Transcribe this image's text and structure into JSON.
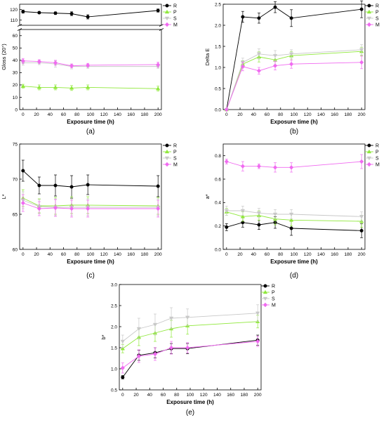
{
  "series_styles": [
    {
      "name": "R",
      "color": "#000000"
    },
    {
      "name": "P",
      "color": "#8fe83a"
    },
    {
      "name": "S",
      "color": "#c8c8c8"
    },
    {
      "name": "M",
      "color": "#f06af0"
    }
  ],
  "chart_data": [
    {
      "panel": "(a)",
      "type": "line",
      "xlabel": "Exposure time (h)",
      "ylabel": "Gloss (20°)",
      "xlim": [
        -5,
        205
      ],
      "xticks": [
        0,
        20,
        40,
        60,
        80,
        100,
        120,
        140,
        160,
        180,
        200
      ],
      "broken_axis": true,
      "upper_ylim": [
        105,
        125
      ],
      "upper_yticks": [
        110,
        120
      ],
      "lower_ylim": [
        0,
        65
      ],
      "lower_yticks": [
        0,
        10,
        20,
        30,
        40,
        50,
        60
      ],
      "ytick_labels": [
        "0",
        "10",
        "20",
        "30",
        "40",
        "50",
        "60",
        "110",
        "120"
      ],
      "x": [
        0,
        24,
        48,
        72,
        96,
        200
      ],
      "series": [
        {
          "name": "R",
          "values": [
            118,
            117,
            116.5,
            116,
            113,
            119
          ],
          "errors": [
            1.5,
            1,
            1.2,
            1.8,
            2,
            1.5
          ]
        },
        {
          "name": "P",
          "values": [
            19,
            18,
            18,
            17.5,
            18,
            17
          ],
          "errors": [
            1.5,
            2,
            2,
            2,
            2,
            2
          ]
        },
        {
          "name": "S",
          "values": [
            38,
            38,
            37,
            35,
            35,
            35
          ],
          "errors": [
            2,
            1.5,
            2.5,
            2,
            1.5,
            1.5
          ]
        },
        {
          "name": "M",
          "values": [
            39.5,
            39,
            38,
            35.5,
            36,
            36.5
          ],
          "errors": [
            2,
            1.5,
            2,
            1.5,
            1.5,
            2
          ]
        }
      ]
    },
    {
      "panel": "(b)",
      "type": "line",
      "xlabel": "Exposure time (h)",
      "ylabel": "Delta E",
      "xlim": [
        -5,
        205
      ],
      "ylim": [
        0,
        2.5
      ],
      "xticks": [
        0,
        20,
        40,
        60,
        80,
        100,
        120,
        140,
        160,
        180,
        200
      ],
      "yticks": [
        0.0,
        0.5,
        1.0,
        1.5,
        2.0,
        2.5
      ],
      "ytick_labels": [
        "0.0",
        "0.5",
        "1.0",
        "1.5",
        "2.0",
        "2.5"
      ],
      "x": [
        0,
        24,
        48,
        72,
        96,
        200
      ],
      "series": [
        {
          "name": "R",
          "values": [
            0,
            2.2,
            2.17,
            2.43,
            2.17,
            2.38
          ],
          "errors": [
            0,
            0.13,
            0.12,
            0.13,
            0.2,
            0.2
          ]
        },
        {
          "name": "P",
          "values": [
            0,
            1.08,
            1.25,
            1.18,
            1.28,
            1.38
          ],
          "errors": [
            0,
            0.08,
            0.12,
            0.12,
            0.1,
            0.1
          ]
        },
        {
          "name": "S",
          "values": [
            0,
            1.12,
            1.32,
            1.28,
            1.32,
            1.42
          ],
          "errors": [
            0,
            0.1,
            0.12,
            0.12,
            0.1,
            0.12
          ]
        },
        {
          "name": "M",
          "values": [
            0,
            1.02,
            0.92,
            1.04,
            1.08,
            1.12
          ],
          "errors": [
            0,
            0.1,
            0.08,
            0.1,
            0.1,
            0.15
          ]
        }
      ]
    },
    {
      "panel": "(c)",
      "type": "line",
      "xlabel": "Exposure time (h)",
      "ylabel": "L*",
      "xlim": [
        -5,
        205
      ],
      "ylim": [
        60,
        75
      ],
      "xticks": [
        0,
        20,
        40,
        60,
        80,
        100,
        120,
        140,
        160,
        180,
        200
      ],
      "yticks": [
        60,
        65,
        70,
        75
      ],
      "ytick_labels": [
        "60",
        "65",
        "70",
        "75"
      ],
      "x": [
        0,
        24,
        48,
        72,
        96,
        200
      ],
      "series": [
        {
          "name": "R",
          "values": [
            71.2,
            69.1,
            69.1,
            68.9,
            69.2,
            69.0
          ],
          "errors": [
            1.5,
            1.2,
            1.5,
            1.6,
            1.4,
            1.5
          ]
        },
        {
          "name": "P",
          "values": [
            67.3,
            66.2,
            66.2,
            66.3,
            66.3,
            66.2
          ],
          "errors": [
            1.2,
            1,
            1.2,
            1.2,
            1.2,
            1.2
          ]
        },
        {
          "name": "S",
          "values": [
            67.0,
            66.1,
            66.0,
            66.0,
            66.0,
            66.0
          ],
          "errors": [
            1.2,
            1,
            1.2,
            1.2,
            1.2,
            1.2
          ]
        },
        {
          "name": "M",
          "values": [
            66.6,
            65.8,
            65.9,
            65.8,
            65.8,
            65.8
          ],
          "errors": [
            1.2,
            1,
            1.2,
            1.2,
            1.2,
            1.2
          ]
        }
      ]
    },
    {
      "panel": "(d)",
      "type": "line",
      "xlabel": "Exposure time (h)",
      "ylabel": "a*",
      "xlim": [
        -5,
        205
      ],
      "ylim": [
        0,
        0.9
      ],
      "xticks": [
        0,
        20,
        40,
        60,
        80,
        100,
        120,
        140,
        160,
        180,
        200
      ],
      "yticks": [
        0.0,
        0.2,
        0.4,
        0.6,
        0.8
      ],
      "ytick_labels": [
        "0.0",
        "0.2",
        "0.4",
        "0.6",
        "0.8"
      ],
      "x": [
        0,
        24,
        48,
        72,
        96,
        200
      ],
      "series": [
        {
          "name": "R",
          "values": [
            0.19,
            0.23,
            0.21,
            0.23,
            0.18,
            0.16
          ],
          "errors": [
            0.03,
            0.04,
            0.04,
            0.05,
            0.06,
            0.06
          ]
        },
        {
          "name": "P",
          "values": [
            0.32,
            0.28,
            0.29,
            0.26,
            0.25,
            0.24
          ],
          "errors": [
            0.03,
            0.04,
            0.04,
            0.05,
            0.05,
            0.05
          ]
        },
        {
          "name": "S",
          "values": [
            0.33,
            0.33,
            0.31,
            0.3,
            0.3,
            0.28
          ],
          "errors": [
            0.04,
            0.04,
            0.04,
            0.04,
            0.04,
            0.04
          ]
        },
        {
          "name": "M",
          "values": [
            0.75,
            0.71,
            0.71,
            0.7,
            0.7,
            0.75
          ],
          "errors": [
            0.02,
            0.04,
            0.02,
            0.04,
            0.04,
            0.06
          ]
        }
      ]
    },
    {
      "panel": "(e)",
      "type": "line",
      "xlabel": "Exposure time (h)",
      "ylabel": "b*",
      "xlim": [
        -5,
        205
      ],
      "ylim": [
        0.5,
        3.0
      ],
      "xticks": [
        0,
        20,
        40,
        60,
        80,
        100,
        120,
        140,
        160,
        180,
        200
      ],
      "yticks": [
        0.5,
        1.0,
        1.5,
        2.0,
        2.5,
        3.0
      ],
      "ytick_labels": [
        "0.5",
        "1.0",
        "1.5",
        "2.0",
        "2.5",
        "3.0"
      ],
      "x": [
        0,
        24,
        48,
        72,
        96,
        200
      ],
      "series": [
        {
          "name": "R",
          "values": [
            0.8,
            1.32,
            1.38,
            1.48,
            1.48,
            1.68
          ],
          "errors": [
            0.04,
            0.12,
            0.12,
            0.12,
            0.12,
            0.12
          ]
        },
        {
          "name": "P",
          "values": [
            1.48,
            1.75,
            1.85,
            1.95,
            2.02,
            2.12
          ],
          "errors": [
            0.1,
            0.2,
            0.2,
            0.2,
            0.2,
            0.15
          ]
        },
        {
          "name": "S",
          "values": [
            1.65,
            1.95,
            2.05,
            2.2,
            2.22,
            2.32
          ],
          "errors": [
            0.15,
            0.25,
            0.25,
            0.25,
            0.2,
            0.2
          ]
        },
        {
          "name": "M",
          "values": [
            1.02,
            1.3,
            1.35,
            1.5,
            1.5,
            1.65
          ],
          "errors": [
            0.12,
            0.15,
            0.15,
            0.15,
            0.12,
            0.12
          ]
        }
      ]
    }
  ]
}
